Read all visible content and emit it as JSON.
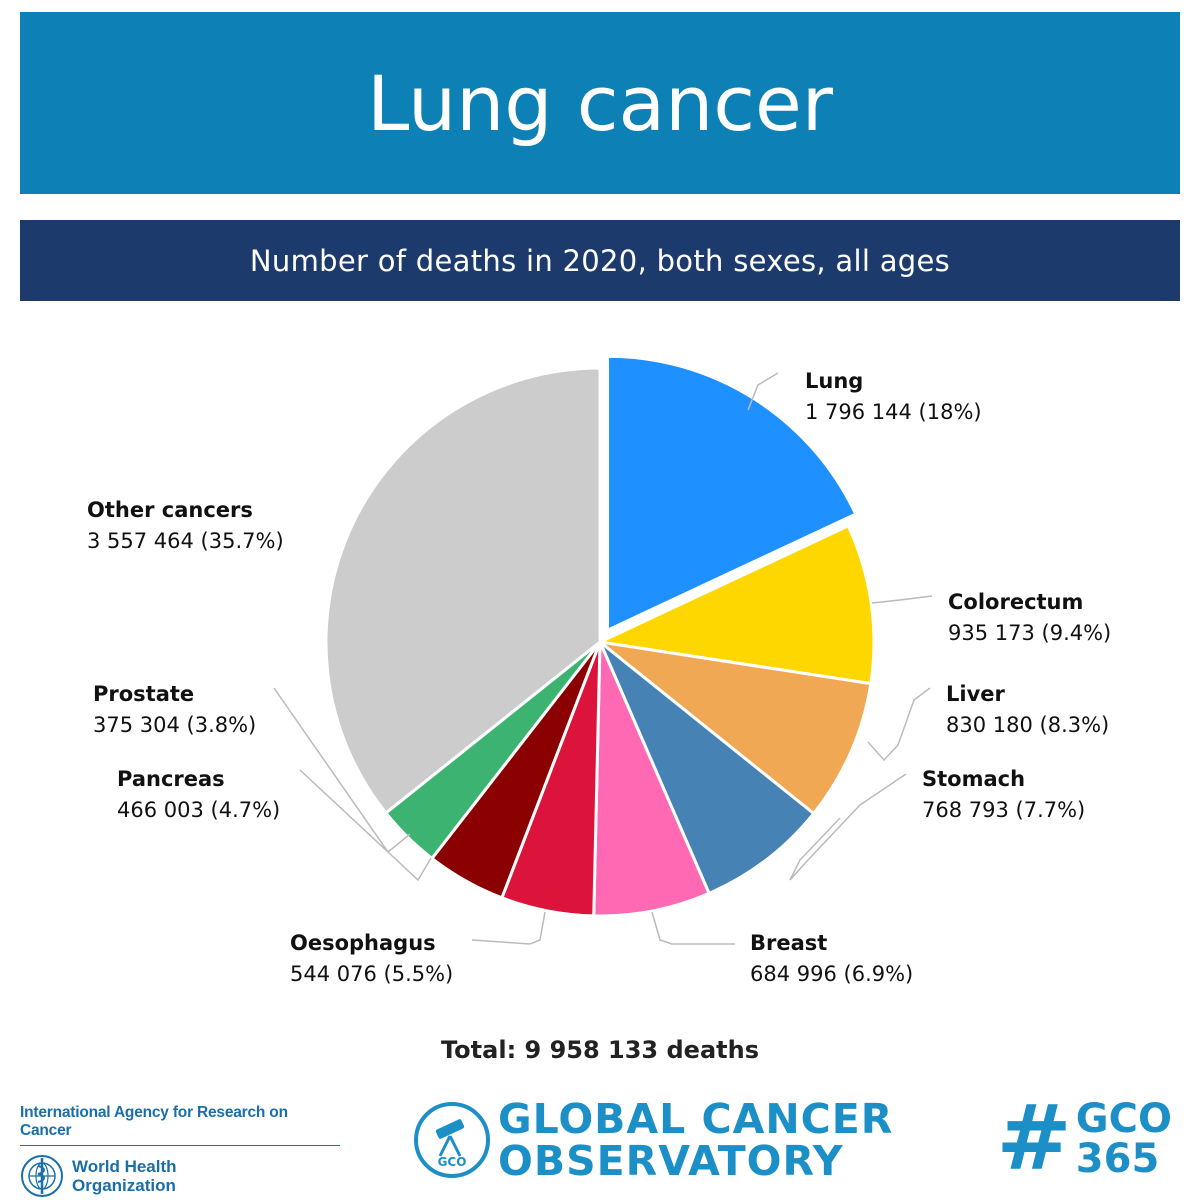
{
  "header": {
    "title": "Lung cancer",
    "subtitle": "Number of deaths in 2020, both sexes, all ages"
  },
  "chart_data": {
    "type": "pie",
    "title": "Lung cancer",
    "subtitle": "Number of deaths in 2020, both sexes, all ages",
    "total_label": "Total: 9 958 133 deaths",
    "slices": [
      {
        "name": "Lung",
        "value": 1796144,
        "value_label": "1 796 144 (18%)",
        "percent": 18,
        "color": "#1e90ff",
        "exploded": true
      },
      {
        "name": "Colorectum",
        "value": 935173,
        "value_label": "935 173 (9.4%)",
        "percent": 9.4,
        "color": "#ffd700"
      },
      {
        "name": "Liver",
        "value": 830180,
        "value_label": "830 180 (8.3%)",
        "percent": 8.3,
        "color": "#f0a855"
      },
      {
        "name": "Stomach",
        "value": 768793,
        "value_label": "768 793 (7.7%)",
        "percent": 7.7,
        "color": "#4682b4"
      },
      {
        "name": "Breast",
        "value": 684996,
        "value_label": "684 996 (6.9%)",
        "percent": 6.9,
        "color": "#ff69b4"
      },
      {
        "name": "Oesophagus",
        "value": 544076,
        "value_label": "544 076 (5.5%)",
        "percent": 5.5,
        "color": "#dc143c"
      },
      {
        "name": "Pancreas",
        "value": 466003,
        "value_label": "466 003 (4.7%)",
        "percent": 4.7,
        "color": "#8b0000"
      },
      {
        "name": "Prostate",
        "value": 375304,
        "value_label": "375 304 (3.8%)",
        "percent": 3.8,
        "color": "#3cb371"
      },
      {
        "name": "Other cancers",
        "value": 3557464,
        "value_label": "3 557 464 (35.7%)",
        "percent": 35.7,
        "color": "#cccccc"
      }
    ]
  },
  "footer": {
    "iarc": "International Agency for Research on Cancer",
    "who_line1": "World Health",
    "who_line2": "Organization",
    "gco_line1": "GLOBAL CANCER",
    "gco_line2": "OBSERVATORY",
    "gco_badge": "GCO",
    "hashtag_sign": "#",
    "hashtag_line1": "GCO",
    "hashtag_line2": "365"
  },
  "colors": {
    "header_bg": "#0d80b5",
    "subheader_bg": "#1d3a6c",
    "brand_blue": "#1b8fc6"
  }
}
